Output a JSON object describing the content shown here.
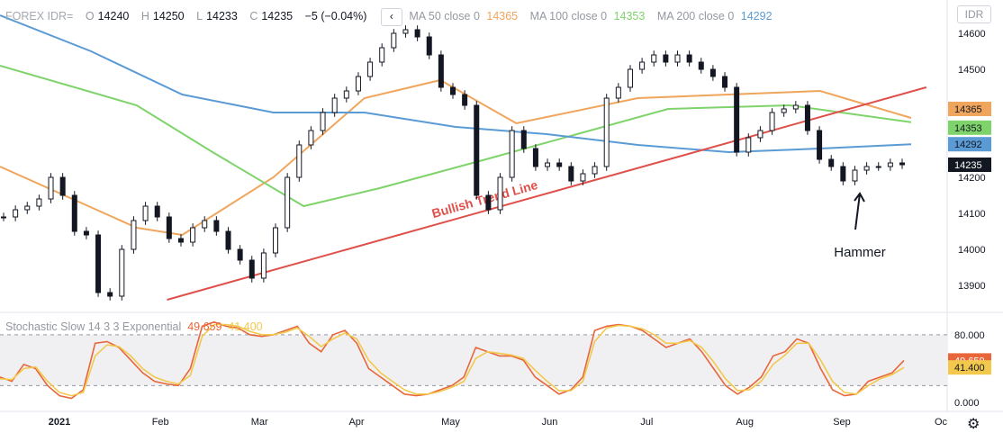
{
  "header": {
    "symbol": "FOREX IDR=",
    "ohlc": [
      {
        "key": "O",
        "value": "14240"
      },
      {
        "key": "H",
        "value": "14250"
      },
      {
        "key": "L",
        "value": "14233"
      },
      {
        "key": "C",
        "value": "14235"
      }
    ],
    "change": "−5 (−0.04%)",
    "collapse_icon": "chevron-left-icon",
    "ma": [
      {
        "label": "MA 50 close 0",
        "value": "14365",
        "color": "#f0a55c"
      },
      {
        "label": "MA 100 close 0",
        "value": "14353",
        "color": "#7fd36b"
      },
      {
        "label": "MA 200 close 0",
        "value": "14292",
        "color": "#5b9bd5"
      }
    ]
  },
  "currency_button": "IDR",
  "settings_icon": "gear-icon",
  "stoch_header": {
    "label": "Stochastic Slow 14 3 3 Exponential",
    "k_value": "49.659",
    "d_value": "41.400",
    "k_color": "#e8663a",
    "d_color": "#f2c94c"
  },
  "chart_data": [
    {
      "type": "candlestick",
      "title": "",
      "y_axis": {
        "ticks": [
          "14600",
          "14500",
          "14400",
          "14300",
          "14200",
          "14100",
          "14000",
          "13900"
        ],
        "ylim": [
          13840,
          14680
        ]
      },
      "x_axis": {
        "ticks": [
          "2021",
          "Feb",
          "Mar",
          "Apr",
          "May",
          "Jun",
          "Jul",
          "Aug",
          "Sep",
          "Oc"
        ]
      },
      "price_labels": [
        {
          "text": "14365",
          "value": 14365,
          "color": "#f0a55c"
        },
        {
          "text": "14353",
          "value": 14353,
          "color": "#7fd36b"
        },
        {
          "text": "14292",
          "value": 14292,
          "color": "#5b9bd5"
        },
        {
          "text": "14235",
          "value": 14235,
          "color": "#131722"
        }
      ],
      "closes_approx": [
        14090,
        14110,
        14120,
        14140,
        14200,
        14150,
        14050,
        14040,
        13880,
        13870,
        14000,
        14080,
        14120,
        14090,
        14030,
        14020,
        14060,
        14080,
        14050,
        14000,
        13970,
        13920,
        13990,
        14060,
        14200,
        14290,
        14330,
        14380,
        14420,
        14440,
        14480,
        14520,
        14560,
        14600,
        14610,
        14590,
        14540,
        14450,
        14430,
        14400,
        14150,
        14110,
        14200,
        14330,
        14280,
        14230,
        14240,
        14230,
        14190,
        14210,
        14230,
        14420,
        14450,
        14500,
        14520,
        14540,
        14520,
        14540,
        14520,
        14500,
        14480,
        14450,
        14270,
        14310,
        14330,
        14380,
        14390,
        14400,
        14330,
        14250,
        14230,
        14190,
        14220,
        14230,
        14230,
        14240,
        14235
      ],
      "moving_averages": [
        {
          "name": "MA 50",
          "color": "#f0a55c",
          "points": [
            [
              0,
              14230
            ],
            [
              90,
              14060
            ],
            [
              120,
              14040
            ],
            [
              180,
              14200
            ],
            [
              240,
              14420
            ],
            [
              290,
              14470
            ],
            [
              340,
              14350
            ],
            [
              420,
              14420
            ],
            [
              480,
              14430
            ],
            [
              540,
              14440
            ],
            [
              600,
              14365
            ]
          ]
        },
        {
          "name": "MA 100",
          "color": "#7fd36b",
          "points": [
            [
              0,
              14510
            ],
            [
              90,
              14400
            ],
            [
              140,
              14270
            ],
            [
              200,
              14120
            ],
            [
              250,
              14170
            ],
            [
              320,
              14250
            ],
            [
              380,
              14320
            ],
            [
              440,
              14390
            ],
            [
              520,
              14400
            ],
            [
              600,
              14353
            ]
          ]
        },
        {
          "name": "MA 200",
          "color": "#5b9bd5",
          "points": [
            [
              0,
              14650
            ],
            [
              60,
              14550
            ],
            [
              120,
              14430
            ],
            [
              180,
              14380
            ],
            [
              240,
              14380
            ],
            [
              300,
              14340
            ],
            [
              360,
              14320
            ],
            [
              420,
              14290
            ],
            [
              480,
              14270
            ],
            [
              540,
              14280
            ],
            [
              600,
              14292
            ]
          ]
        }
      ],
      "trend_line": {
        "label": "Bullish Trend Line",
        "color": "#e0504a",
        "from": [
          110,
          13860
        ],
        "to": [
          610,
          14450
        ]
      },
      "annotation": {
        "text": "Hammer",
        "arrow_to_value": 14180
      }
    },
    {
      "type": "line",
      "title": "",
      "y_axis": {
        "ticks": [
          "80.000",
          "0.000"
        ],
        "ylim": [
          -3,
          100
        ]
      },
      "price_labels": [
        {
          "text": "49.659",
          "value": 49.659,
          "color": "#e8663a"
        },
        {
          "text": "41.400",
          "value": 41.4,
          "color": "#f2c94c"
        }
      ],
      "band": [
        20,
        80
      ],
      "series": [
        {
          "color": "#e8663a",
          "values": [
            30,
            25,
            45,
            40,
            20,
            8,
            5,
            15,
            70,
            72,
            65,
            50,
            35,
            25,
            22,
            20,
            40,
            90,
            95,
            90,
            88,
            80,
            78,
            80,
            85,
            90,
            70,
            60,
            80,
            85,
            70,
            40,
            30,
            20,
            10,
            8,
            10,
            15,
            20,
            30,
            65,
            60,
            55,
            55,
            50,
            30,
            20,
            10,
            15,
            30,
            85,
            90,
            92,
            90,
            85,
            75,
            65,
            70,
            75,
            60,
            40,
            20,
            10,
            18,
            30,
            55,
            60,
            75,
            70,
            40,
            15,
            8,
            10,
            25,
            30,
            35,
            49.659
          ]
        },
        {
          "color": "#f2c94c",
          "values": [
            28,
            27,
            40,
            42,
            25,
            12,
            8,
            12,
            55,
            68,
            66,
            55,
            40,
            30,
            25,
            22,
            32,
            78,
            92,
            92,
            90,
            84,
            80,
            80,
            83,
            88,
            78,
            66,
            75,
            82,
            75,
            50,
            35,
            25,
            15,
            10,
            10,
            13,
            18,
            25,
            52,
            60,
            58,
            56,
            52,
            38,
            25,
            14,
            14,
            25,
            72,
            88,
            91,
            90,
            87,
            80,
            70,
            70,
            73,
            65,
            48,
            28,
            14,
            15,
            25,
            45,
            56,
            70,
            70,
            50,
            25,
            12,
            10,
            20,
            28,
            33,
            41.4
          ]
        }
      ]
    }
  ]
}
